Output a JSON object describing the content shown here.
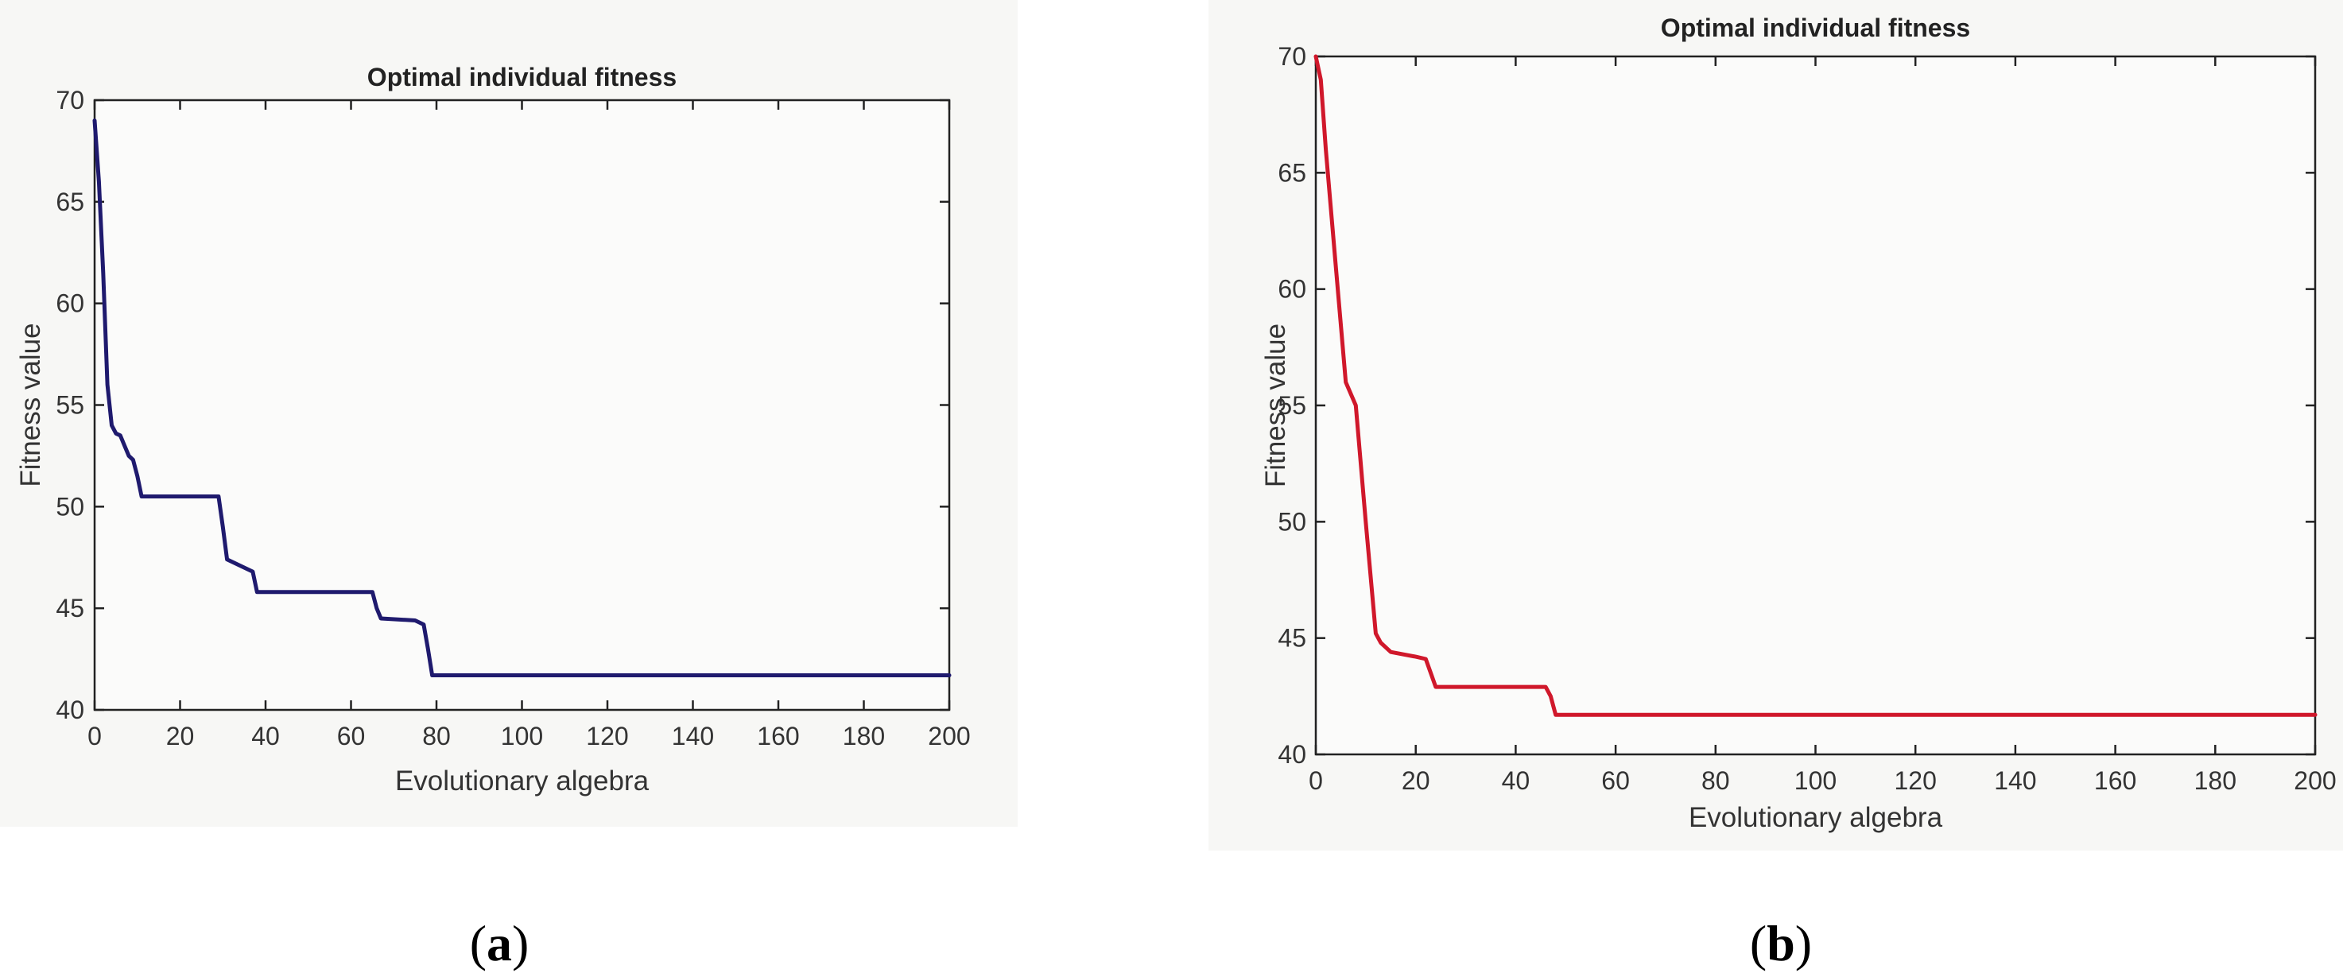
{
  "panels": [
    {
      "caption": "a",
      "color": "#1f1a6e",
      "chart_data": {
        "type": "line",
        "title": "Optimal individual fitness",
        "xlabel": "Evolutionary algebra",
        "ylabel": "Fitness value",
        "xlim": [
          0,
          200
        ],
        "ylim": [
          40,
          70
        ],
        "xticks": [
          0,
          20,
          40,
          60,
          80,
          100,
          120,
          140,
          160,
          180,
          200
        ],
        "yticks": [
          40,
          45,
          50,
          55,
          60,
          65,
          70
        ],
        "grid": false,
        "series": [
          {
            "color": "#1f1a6e",
            "x": [
              0,
              1,
              2,
              3,
              4,
              5,
              6,
              7,
              8,
              9,
              10,
              11,
              29,
              30,
              31,
              35,
              37,
              38,
              65,
              66,
              67,
              75,
              77,
              78,
              79,
              200
            ],
            "y": [
              69,
              66,
              61.5,
              56,
              54,
              53.6,
              53.5,
              53,
              52.5,
              52.3,
              51.5,
              50.5,
              50.5,
              49,
              47.4,
              47,
              46.8,
              45.8,
              45.8,
              45,
              44.5,
              44.4,
              44.2,
              43,
              41.7,
              41.7
            ]
          }
        ]
      }
    },
    {
      "caption": "b",
      "color": "#d0182b",
      "chart_data": {
        "type": "line",
        "title": "Optimal individual fitness",
        "xlabel": "Evolutionary algebra",
        "ylabel": "Fitness value",
        "xlim": [
          0,
          200
        ],
        "ylim": [
          40,
          70
        ],
        "xticks": [
          0,
          20,
          40,
          60,
          80,
          100,
          120,
          140,
          160,
          180,
          200
        ],
        "yticks": [
          40,
          45,
          50,
          55,
          60,
          65,
          70
        ],
        "grid": false,
        "series": [
          {
            "color": "#d0182b",
            "x": [
              0,
              1,
              2,
              4,
              6,
              8,
              10,
              12,
              13,
              15,
              20,
              22,
              23,
              24,
              46,
              47,
              48,
              200
            ],
            "y": [
              70,
              69,
              66,
              61,
              56,
              55,
              50,
              45.2,
              44.8,
              44.4,
              44.2,
              44.1,
              43.5,
              42.9,
              42.9,
              42.5,
              41.7,
              41.7
            ]
          }
        ]
      }
    }
  ]
}
